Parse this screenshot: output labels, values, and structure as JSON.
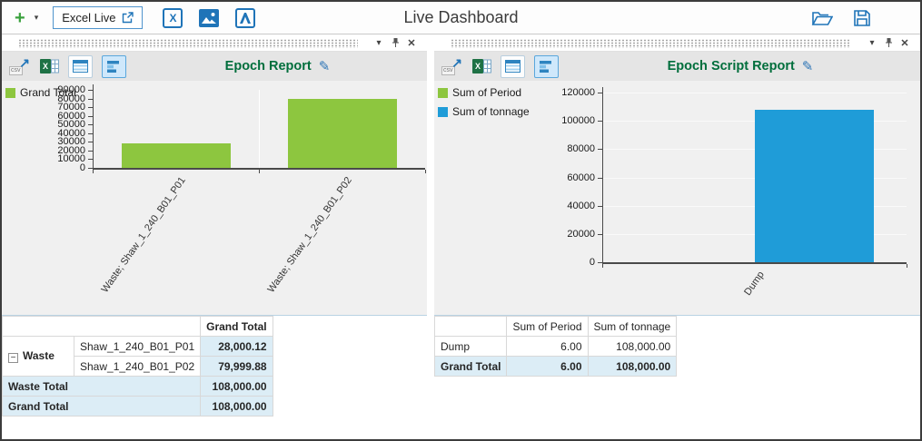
{
  "window": {
    "title": "Live Dashboard"
  },
  "toolbar": {
    "add_label": "+",
    "excel_live_label": "Excel Live"
  },
  "icons": {
    "dropdown": "▾",
    "close": "✕",
    "pencil": "✎",
    "csv_label": "csv",
    "export_arrow": "↗",
    "collapse_minus": "−",
    "excel_x": "X"
  },
  "colors": {
    "accent_blue": "#1f74b8",
    "title_green": "#006e3c",
    "bar_green": "#8dc63f",
    "bar_blue": "#1f9cd8",
    "total_row_bg": "#dcedf6"
  },
  "left_panel": {
    "title": "Epoch Report",
    "table": {
      "headers": [
        "",
        "",
        "Grand Total"
      ],
      "rows": [
        [
          "Waste",
          "Shaw_1_240_B01_P01",
          "28,000.12"
        ],
        [
          "",
          "Shaw_1_240_B01_P02",
          "79,999.88"
        ],
        [
          "Waste Total",
          "",
          "108,000.00"
        ],
        [
          "Grand Total",
          "",
          "108,000.00"
        ]
      ]
    }
  },
  "right_panel": {
    "title": "Epoch Script Report",
    "table": {
      "headers": [
        "",
        "Sum of Period",
        "Sum of tonnage"
      ],
      "rows": [
        [
          "Dump",
          "6.00",
          "108,000.00"
        ],
        [
          "Grand Total",
          "6.00",
          "108,000.00"
        ]
      ]
    }
  },
  "chart_data": [
    {
      "type": "bar",
      "title": "Epoch Report",
      "categories": [
        "Waste; Shaw_1_240_B01_P01",
        "Waste; Shaw_1_240_B01_P02"
      ],
      "series": [
        {
          "name": "Grand Total",
          "color": "#8dc63f",
          "values": [
            28000.12,
            79999.88
          ]
        }
      ],
      "ylim": [
        0,
        90000
      ],
      "ytick_step": 10000,
      "grid": "v",
      "legend_position": "top-left"
    },
    {
      "type": "bar",
      "title": "Epoch Script Report",
      "categories": [
        "Dump"
      ],
      "series": [
        {
          "name": "Sum of Period",
          "color": "#8dc63f",
          "values": [
            6
          ]
        },
        {
          "name": "Sum of tonnage",
          "color": "#1f9cd8",
          "values": [
            108000
          ]
        }
      ],
      "ylim": [
        0,
        120000
      ],
      "ytick_step": 20000,
      "grid": "h",
      "legend_position": "top-left"
    }
  ]
}
